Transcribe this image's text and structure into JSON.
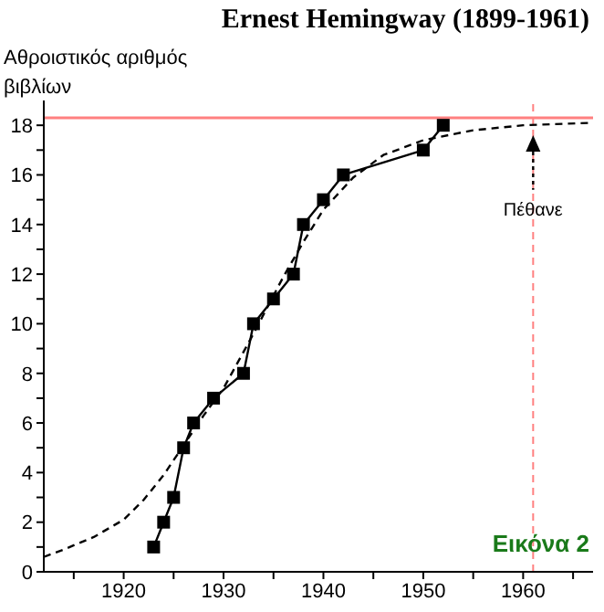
{
  "chart_data": {
    "type": "line",
    "title": "Ernest Hemingway (1899-1961)",
    "ylabel": "Αθροιστικός αριθμός βιβλίων",
    "series": [
      {
        "color": "#000000",
        "marker": "square",
        "line_style": "solid",
        "x": [
          1923,
          1924,
          1925,
          1926,
          1927,
          1929,
          1932,
          1933,
          1935,
          1937,
          1938,
          1940,
          1942,
          1950,
          1952
        ],
        "values": [
          1,
          2,
          3,
          5,
          6,
          7,
          8,
          10,
          11,
          12,
          14,
          15,
          16,
          17,
          18
        ]
      },
      {
        "color": "#000000",
        "marker": "none",
        "line_style": "dashed",
        "x": [
          1912,
          1914,
          1917,
          1920,
          1922,
          1924,
          1926,
          1928,
          1930,
          1933,
          1936,
          1938,
          1940,
          1943,
          1946,
          1950,
          1955,
          1960,
          1967
        ],
        "values": [
          0.6,
          0.9,
          1.4,
          2.1,
          2.9,
          3.9,
          5.1,
          6.3,
          7.4,
          9.6,
          11.9,
          13.3,
          14.6,
          15.9,
          16.8,
          17.4,
          17.8,
          18,
          18.1
        ]
      }
    ],
    "xlim": [
      1912,
      1967
    ],
    "ylim": [
      0,
      19
    ],
    "xticks": [
      {
        "value": 1915,
        "label": null
      },
      1920,
      {
        "value": 1925,
        "label": null
      },
      1930,
      {
        "value": 1935,
        "label": null
      },
      1940,
      {
        "value": 1945,
        "label": null
      },
      1950,
      {
        "value": 1955,
        "label": null
      },
      1960,
      {
        "value": 1965,
        "label": null
      }
    ],
    "yticks": [
      0,
      {
        "value": 1,
        "label": null
      },
      2,
      {
        "value": 3,
        "label": null
      },
      4,
      {
        "value": 5,
        "label": null
      },
      6,
      {
        "value": 7,
        "label": null
      },
      8,
      {
        "value": 9,
        "label": null
      },
      10,
      {
        "value": 11,
        "label": null
      },
      12,
      {
        "value": 13,
        "label": null
      },
      14,
      {
        "value": 15,
        "label": null
      },
      16,
      {
        "value": 17,
        "label": null
      },
      18
    ],
    "ref_lines": [
      {
        "axis": "y",
        "value": 18.3,
        "color": "#ff8080",
        "line_style": "solid"
      },
      {
        "axis": "x",
        "value": 1961,
        "color": "#ff8080",
        "line_style": "dashed",
        "label": "Πέθανε"
      }
    ],
    "annotations": [
      "Εικόνα 2"
    ],
    "grid": false
  }
}
